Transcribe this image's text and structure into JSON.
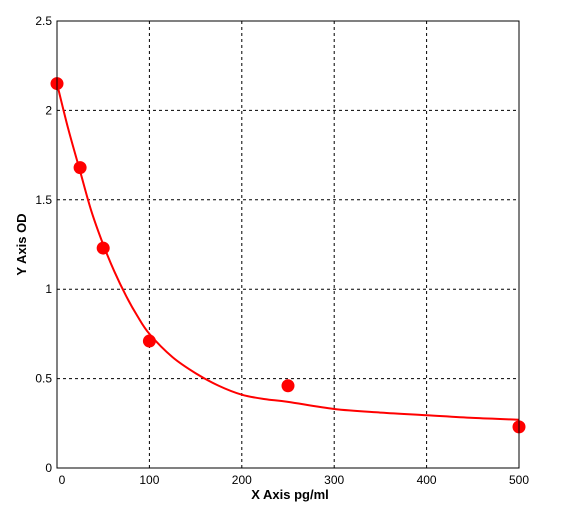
{
  "chart_data": {
    "type": "scatter",
    "title": "",
    "xlabel": "X Axis pg/ml",
    "ylabel": "Y Axis OD",
    "xlim": [
      0,
      500
    ],
    "ylim": [
      0,
      2.5
    ],
    "x_ticks": [
      0,
      100,
      200,
      300,
      400,
      500
    ],
    "y_ticks": [
      0,
      0.5,
      1,
      1.5,
      2,
      2.5
    ],
    "x_tick_labels": [
      "0",
      "100",
      "200",
      "300",
      "400",
      "500"
    ],
    "y_tick_labels": [
      "0",
      "0.5",
      "1",
      "1.5",
      "2",
      "2.5"
    ],
    "grid": true,
    "grid_style": "dashed",
    "series": [
      {
        "points": [
          {
            "x": 0,
            "y": 2.15
          },
          {
            "x": 25,
            "y": 1.68
          },
          {
            "x": 50,
            "y": 1.23
          },
          {
            "x": 100,
            "y": 0.71
          },
          {
            "x": 250,
            "y": 0.46
          },
          {
            "x": 500,
            "y": 0.23
          }
        ],
        "color": "#ff0000"
      }
    ],
    "fit_curve": {
      "color": "#ff0000",
      "points": [
        {
          "x": 0,
          "y": 2.15
        },
        {
          "x": 12,
          "y": 1.9
        },
        {
          "x": 25,
          "y": 1.66
        },
        {
          "x": 37,
          "y": 1.44
        },
        {
          "x": 50,
          "y": 1.25
        },
        {
          "x": 62,
          "y": 1.1
        },
        {
          "x": 75,
          "y": 0.96
        },
        {
          "x": 87,
          "y": 0.85
        },
        {
          "x": 100,
          "y": 0.75
        },
        {
          "x": 125,
          "y": 0.62
        },
        {
          "x": 150,
          "y": 0.53
        },
        {
          "x": 175,
          "y": 0.46
        },
        {
          "x": 200,
          "y": 0.41
        },
        {
          "x": 225,
          "y": 0.385
        },
        {
          "x": 250,
          "y": 0.37
        },
        {
          "x": 300,
          "y": 0.33
        },
        {
          "x": 350,
          "y": 0.31
        },
        {
          "x": 400,
          "y": 0.295
        },
        {
          "x": 450,
          "y": 0.28
        },
        {
          "x": 500,
          "y": 0.27
        }
      ]
    }
  }
}
